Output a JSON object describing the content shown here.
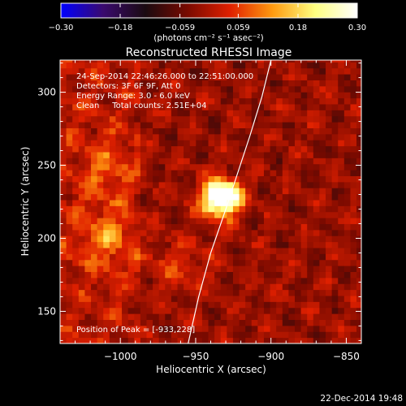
{
  "chart_data": {
    "type": "heatmap",
    "title": "Reconstructed RHESSI Image",
    "colorbar": {
      "ticks": [
        "-0.30",
        "-0.18",
        "-0.059",
        "0.059",
        "0.18",
        "0.30"
      ],
      "range": [
        -0.3,
        0.3
      ],
      "unit_label": "(photons cm⁻² s⁻¹ asec⁻²)",
      "colors": [
        "#0000ff",
        "#3a0a6e",
        "#1a0a10",
        "#7a0a00",
        "#e02000",
        "#ff9a10",
        "#ffff80",
        "#ffffff"
      ]
    },
    "xlabel": "Heliocentric X (arcsec)",
    "ylabel": "Heliocentric Y (arcsec)",
    "xlim": [
      -1040,
      -840
    ],
    "ylim": [
      128,
      322
    ],
    "xticks": [
      -1000,
      -950,
      -900,
      -850
    ],
    "xtick_labels": [
      "−1000",
      "−950",
      "−900",
      "−850"
    ],
    "yticks": [
      150,
      200,
      250,
      300
    ],
    "ytick_labels": [
      "150",
      "200",
      "250",
      "300"
    ],
    "info_lines": [
      "24-Sep-2014 22:46:26.000 to 22:51:00.000",
      "Detectors: 3F 6F 9F, Att 0",
      "Energy Range: 3.0 - 6.0 keV",
      "Clean     Total counts: 2.51E+04"
    ],
    "peak_label": "Position of Peak = [-933,228]",
    "peak": {
      "x": -933,
      "y": 228,
      "value": 0.3
    },
    "secondary_sources": [
      {
        "x": -1010,
        "y": 200,
        "value": 0.16
      },
      {
        "x": -1010,
        "y": 248,
        "value": 0.12
      },
      {
        "x": -960,
        "y": 180,
        "value": 0.1
      }
    ],
    "limb_curve": {
      "x": [
        -955,
        -948,
        -940,
        -930,
        -922,
        -914,
        -906,
        -900
      ],
      "y": [
        128,
        160,
        190,
        220,
        245,
        270,
        297,
        322
      ]
    },
    "colors": {
      "limb": "#ffffff",
      "background": "#000000",
      "foreground": "#ffffff"
    }
  },
  "footer": {
    "timestamp": "22-Dec-2014 19:48"
  }
}
